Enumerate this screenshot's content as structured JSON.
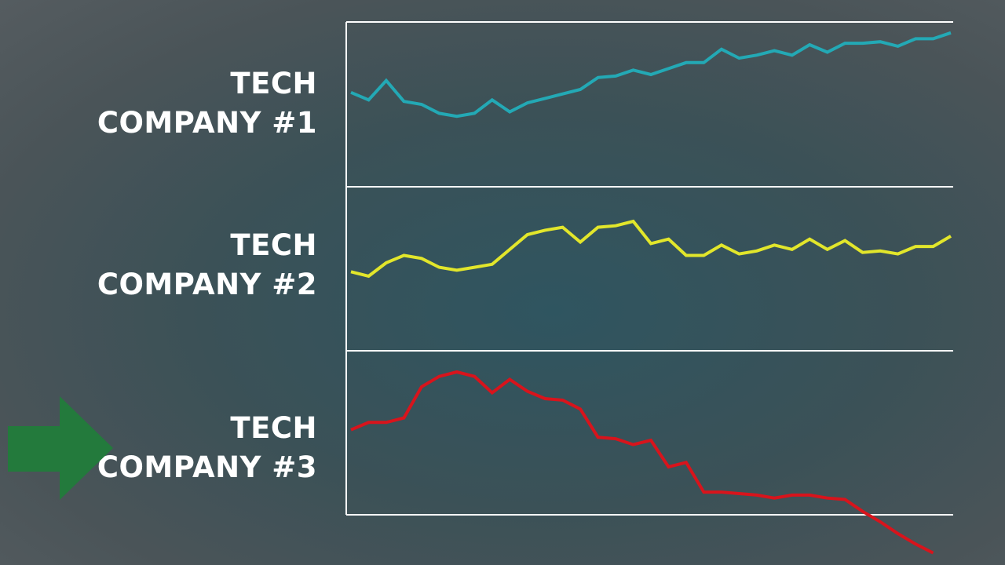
{
  "chart_data": [
    {
      "type": "line",
      "label": [
        "TECH",
        "COMPANY #1"
      ],
      "color": "#23a9b5",
      "values": [
        58,
        53,
        66,
        52,
        50,
        44,
        42,
        44,
        53,
        45,
        51,
        54,
        57,
        60,
        68,
        69,
        73,
        70,
        74,
        78,
        78,
        87,
        81,
        83,
        86,
        83,
        90,
        85,
        91,
        91,
        92,
        89,
        94,
        94,
        98
      ]
    },
    {
      "type": "line",
      "label": [
        "TECH",
        "COMPANY #2"
      ],
      "color": "#e2e62b",
      "values": [
        48,
        45,
        54,
        59,
        57,
        51,
        49,
        51,
        53,
        63,
        73,
        76,
        78,
        68,
        78,
        79,
        82,
        67,
        70,
        59,
        59,
        66,
        60,
        62,
        66,
        63,
        70,
        63,
        69,
        61,
        62,
        60,
        65,
        65,
        72
      ]
    },
    {
      "type": "line",
      "label": [
        "TECH",
        "COMPANY #3"
      ],
      "color": "#d8141c",
      "values": [
        52,
        57,
        57,
        60,
        81,
        88,
        91,
        88,
        77,
        86,
        78,
        73,
        72,
        66,
        47,
        46,
        42,
        45,
        27,
        30,
        10,
        10,
        9,
        8,
        6,
        8,
        8,
        6,
        5,
        -3,
        -10,
        -18,
        -25,
        -31
      ]
    }
  ],
  "arrow": {
    "icon": "right-arrow-icon",
    "color": "#237a3c",
    "points_to": "TECH COMPANY #3"
  }
}
